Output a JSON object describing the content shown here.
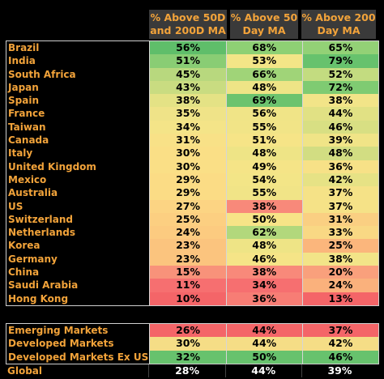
{
  "headers": [
    "% Above 50D\nand 200D MA",
    "% Above 50\nDay MA",
    "% Above 200\nDay MA"
  ],
  "countries": [
    {
      "name": "Brazil",
      "v": [
        "56%",
        "68%",
        "65%"
      ],
      "c": [
        "#5fbe6a",
        "#8ed074",
        "#93d176"
      ]
    },
    {
      "name": "India",
      "v": [
        "51%",
        "53%",
        "79%"
      ],
      "c": [
        "#89cd74",
        "#f3e587",
        "#67c26d"
      ]
    },
    {
      "name": "South Africa",
      "v": [
        "45%",
        "66%",
        "52%"
      ],
      "c": [
        "#b8d87e",
        "#a0d478",
        "#c3dc80"
      ]
    },
    {
      "name": "Japan",
      "v": [
        "43%",
        "48%",
        "72%"
      ],
      "c": [
        "#c9dc81",
        "#eee486",
        "#7fcb72"
      ]
    },
    {
      "name": "Spain",
      "v": [
        "38%",
        "69%",
        "38%"
      ],
      "c": [
        "#e4e285",
        "#6cc36e",
        "#f2e488"
      ]
    },
    {
      "name": "France",
      "v": [
        "35%",
        "56%",
        "44%"
      ],
      "c": [
        "#efe388",
        "#f0e487",
        "#e1e184"
      ]
    },
    {
      "name": "Taiwan",
      "v": [
        "34%",
        "55%",
        "46%"
      ],
      "c": [
        "#f4e488",
        "#f1e487",
        "#d8df83"
      ]
    },
    {
      "name": "Canada",
      "v": [
        "31%",
        "51%",
        "39%"
      ],
      "c": [
        "#f8e187",
        "#f6e487",
        "#f0e487"
      ]
    },
    {
      "name": "Italy",
      "v": [
        "30%",
        "48%",
        "48%"
      ],
      "c": [
        "#fadf86",
        "#eee486",
        "#d2dd82"
      ]
    },
    {
      "name": "United Kingdom",
      "v": [
        "30%",
        "49%",
        "36%"
      ],
      "c": [
        "#fadf86",
        "#f5e487",
        "#f7e187"
      ]
    },
    {
      "name": "Mexico",
      "v": [
        "29%",
        "54%",
        "42%"
      ],
      "c": [
        "#fbdc85",
        "#f3e587",
        "#e6e285"
      ]
    },
    {
      "name": "Australia",
      "v": [
        "29%",
        "55%",
        "37%"
      ],
      "c": [
        "#fbdc85",
        "#f1e487",
        "#f5e287"
      ]
    },
    {
      "name": "US",
      "v": [
        "27%",
        "38%",
        "37%"
      ],
      "c": [
        "#fcd483",
        "#f8897a",
        "#f5e287"
      ]
    },
    {
      "name": "Switzerland",
      "v": [
        "25%",
        "50%",
        "31%"
      ],
      "c": [
        "#fccf81",
        "#f7e487",
        "#facf82"
      ]
    },
    {
      "name": "Netherlands",
      "v": [
        "24%",
        "62%",
        "33%"
      ],
      "c": [
        "#fccb80",
        "#b2d87c",
        "#f9d884"
      ]
    },
    {
      "name": "Korea",
      "v": [
        "23%",
        "48%",
        "25%"
      ],
      "c": [
        "#fbc47e",
        "#eee486",
        "#fbb67c"
      ]
    },
    {
      "name": "Germany",
      "v": [
        "23%",
        "46%",
        "38%"
      ],
      "c": [
        "#fbc47e",
        "#f5e487",
        "#f2e488"
      ]
    },
    {
      "name": "China",
      "v": [
        "15%",
        "38%",
        "20%"
      ],
      "c": [
        "#f8927a",
        "#f8897a",
        "#f9a07c"
      ]
    },
    {
      "name": "Saudi Arabia",
      "v": [
        "11%",
        "34%",
        "24%"
      ],
      "c": [
        "#f66f70",
        "#f66f70",
        "#fab17c"
      ]
    },
    {
      "name": "Hong Kong",
      "v": [
        "10%",
        "36%",
        "13%"
      ],
      "c": [
        "#f46568",
        "#f77d75",
        "#f46568"
      ]
    }
  ],
  "aggregates": [
    {
      "name": "Emerging Markets",
      "v": [
        "26%",
        "44%",
        "37%"
      ],
      "c": [
        "#f46568",
        "#f46568",
        "#f46568"
      ]
    },
    {
      "name": "Developed Markets",
      "v": [
        "30%",
        "44%",
        "42%"
      ],
      "c": [
        "#f5dd86",
        "#f5dd86",
        "#f5dd86"
      ]
    },
    {
      "name": "Developed Markets Ex US",
      "v": [
        "32%",
        "50%",
        "46%"
      ],
      "c": [
        "#67c26d",
        "#67c26d",
        "#67c26d"
      ]
    }
  ],
  "global": {
    "name": "Global",
    "v": [
      "28%",
      "44%",
      "39%"
    ]
  }
}
